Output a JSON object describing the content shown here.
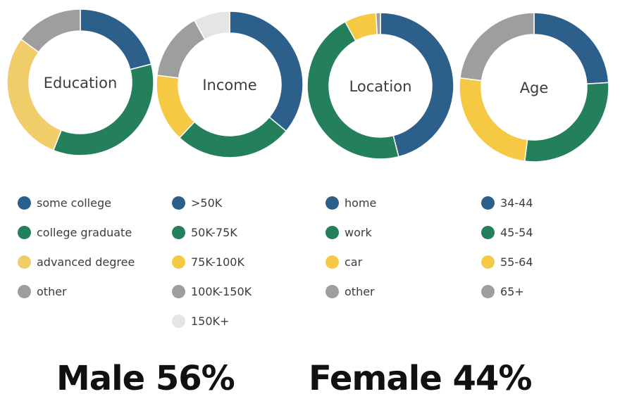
{
  "colors": {
    "navy": "#2d5f8b",
    "green": "#23805a",
    "yellow": "#f5c944",
    "gray": "#9e9e9e",
    "lightgray": "#e5e5e5",
    "paleyellow": "#f1cd6a"
  },
  "chart_data": [
    {
      "type": "pie",
      "title": "Education",
      "slices": [
        {
          "label": "some college",
          "value": 21,
          "color": "#2d5f8b"
        },
        {
          "label": "college graduate",
          "value": 35,
          "color": "#23805a"
        },
        {
          "label": "advanced degree",
          "value": 29,
          "color": "#f1cd6a"
        },
        {
          "label": "other",
          "value": 15,
          "color": "#9e9e9e"
        }
      ]
    },
    {
      "type": "pie",
      "title": "Income",
      "slices": [
        {
          "label": ">50K",
          "value": 36,
          "color": "#2d5f8b"
        },
        {
          "label": "50K-75K",
          "value": 26,
          "color": "#23805a"
        },
        {
          "label": "75K-100K",
          "value": 15,
          "color": "#f5c944"
        },
        {
          "label": "100K-150K",
          "value": 15,
          "color": "#9e9e9e"
        },
        {
          "label": "150K+",
          "value": 8,
          "color": "#e5e5e5"
        }
      ]
    },
    {
      "type": "pie",
      "title": "Location",
      "slices": [
        {
          "label": "home",
          "value": 46,
          "color": "#2d5f8b"
        },
        {
          "label": "work",
          "value": 46,
          "color": "#23805a"
        },
        {
          "label": "car",
          "value": 7,
          "color": "#f5c944"
        },
        {
          "label": "other",
          "value": 1,
          "color": "#9e9e9e"
        }
      ]
    },
    {
      "type": "pie",
      "title": "Age",
      "slices": [
        {
          "label": "34-44",
          "value": 24,
          "color": "#2d5f8b"
        },
        {
          "label": "45-54",
          "value": 28,
          "color": "#23805a"
        },
        {
          "label": "55-64",
          "value": 25,
          "color": "#f5c944"
        },
        {
          "label": "65+",
          "value": 23,
          "color": "#9e9e9e"
        }
      ]
    }
  ],
  "gender": {
    "male": "Male 56%",
    "female": "Female 44%"
  }
}
